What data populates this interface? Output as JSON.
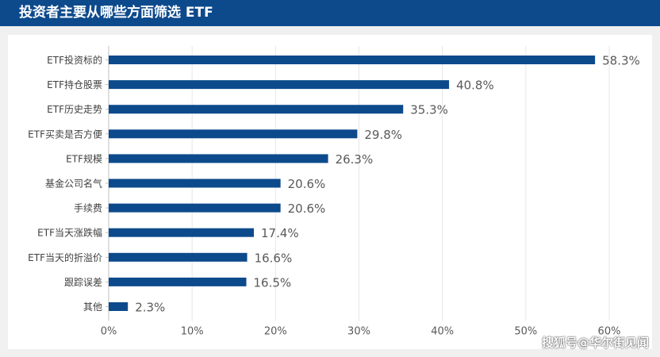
{
  "header": {
    "title": "投资者主要从哪些方面筛选 ETF"
  },
  "watermark": "搜狐号@华尔街见闻",
  "colors": {
    "bar": "#0d4a8c",
    "header_bg": "#0d4a8c",
    "grid": "#e6e6e6",
    "text": "#595959"
  },
  "chart_data": {
    "type": "bar",
    "orientation": "horizontal",
    "title": "投资者主要从哪些方面筛选 ETF",
    "categories": [
      "ETF投资标的",
      "ETF持仓股票",
      "ETF历史走势",
      "ETF买卖是否方便",
      "ETF规模",
      "基金公司名气",
      "手续费",
      "ETF当天涨跌幅",
      "ETF当天的折溢价",
      "跟踪误差",
      "其他"
    ],
    "values": [
      58.3,
      40.8,
      35.3,
      29.8,
      26.3,
      20.6,
      20.6,
      17.4,
      16.6,
      16.5,
      2.3
    ],
    "value_labels": [
      "58.3%",
      "40.8%",
      "35.3%",
      "29.8%",
      "26.3%",
      "20.6%",
      "20.6%",
      "17.4%",
      "16.6%",
      "16.5%",
      "2.3%"
    ],
    "xlim": [
      0,
      60
    ],
    "xticks": [
      0,
      10,
      20,
      30,
      40,
      50,
      60
    ],
    "xtick_labels": [
      "0%",
      "10%",
      "20%",
      "30%",
      "40%",
      "50%",
      "60%"
    ],
    "grid": true,
    "legend": "none"
  }
}
